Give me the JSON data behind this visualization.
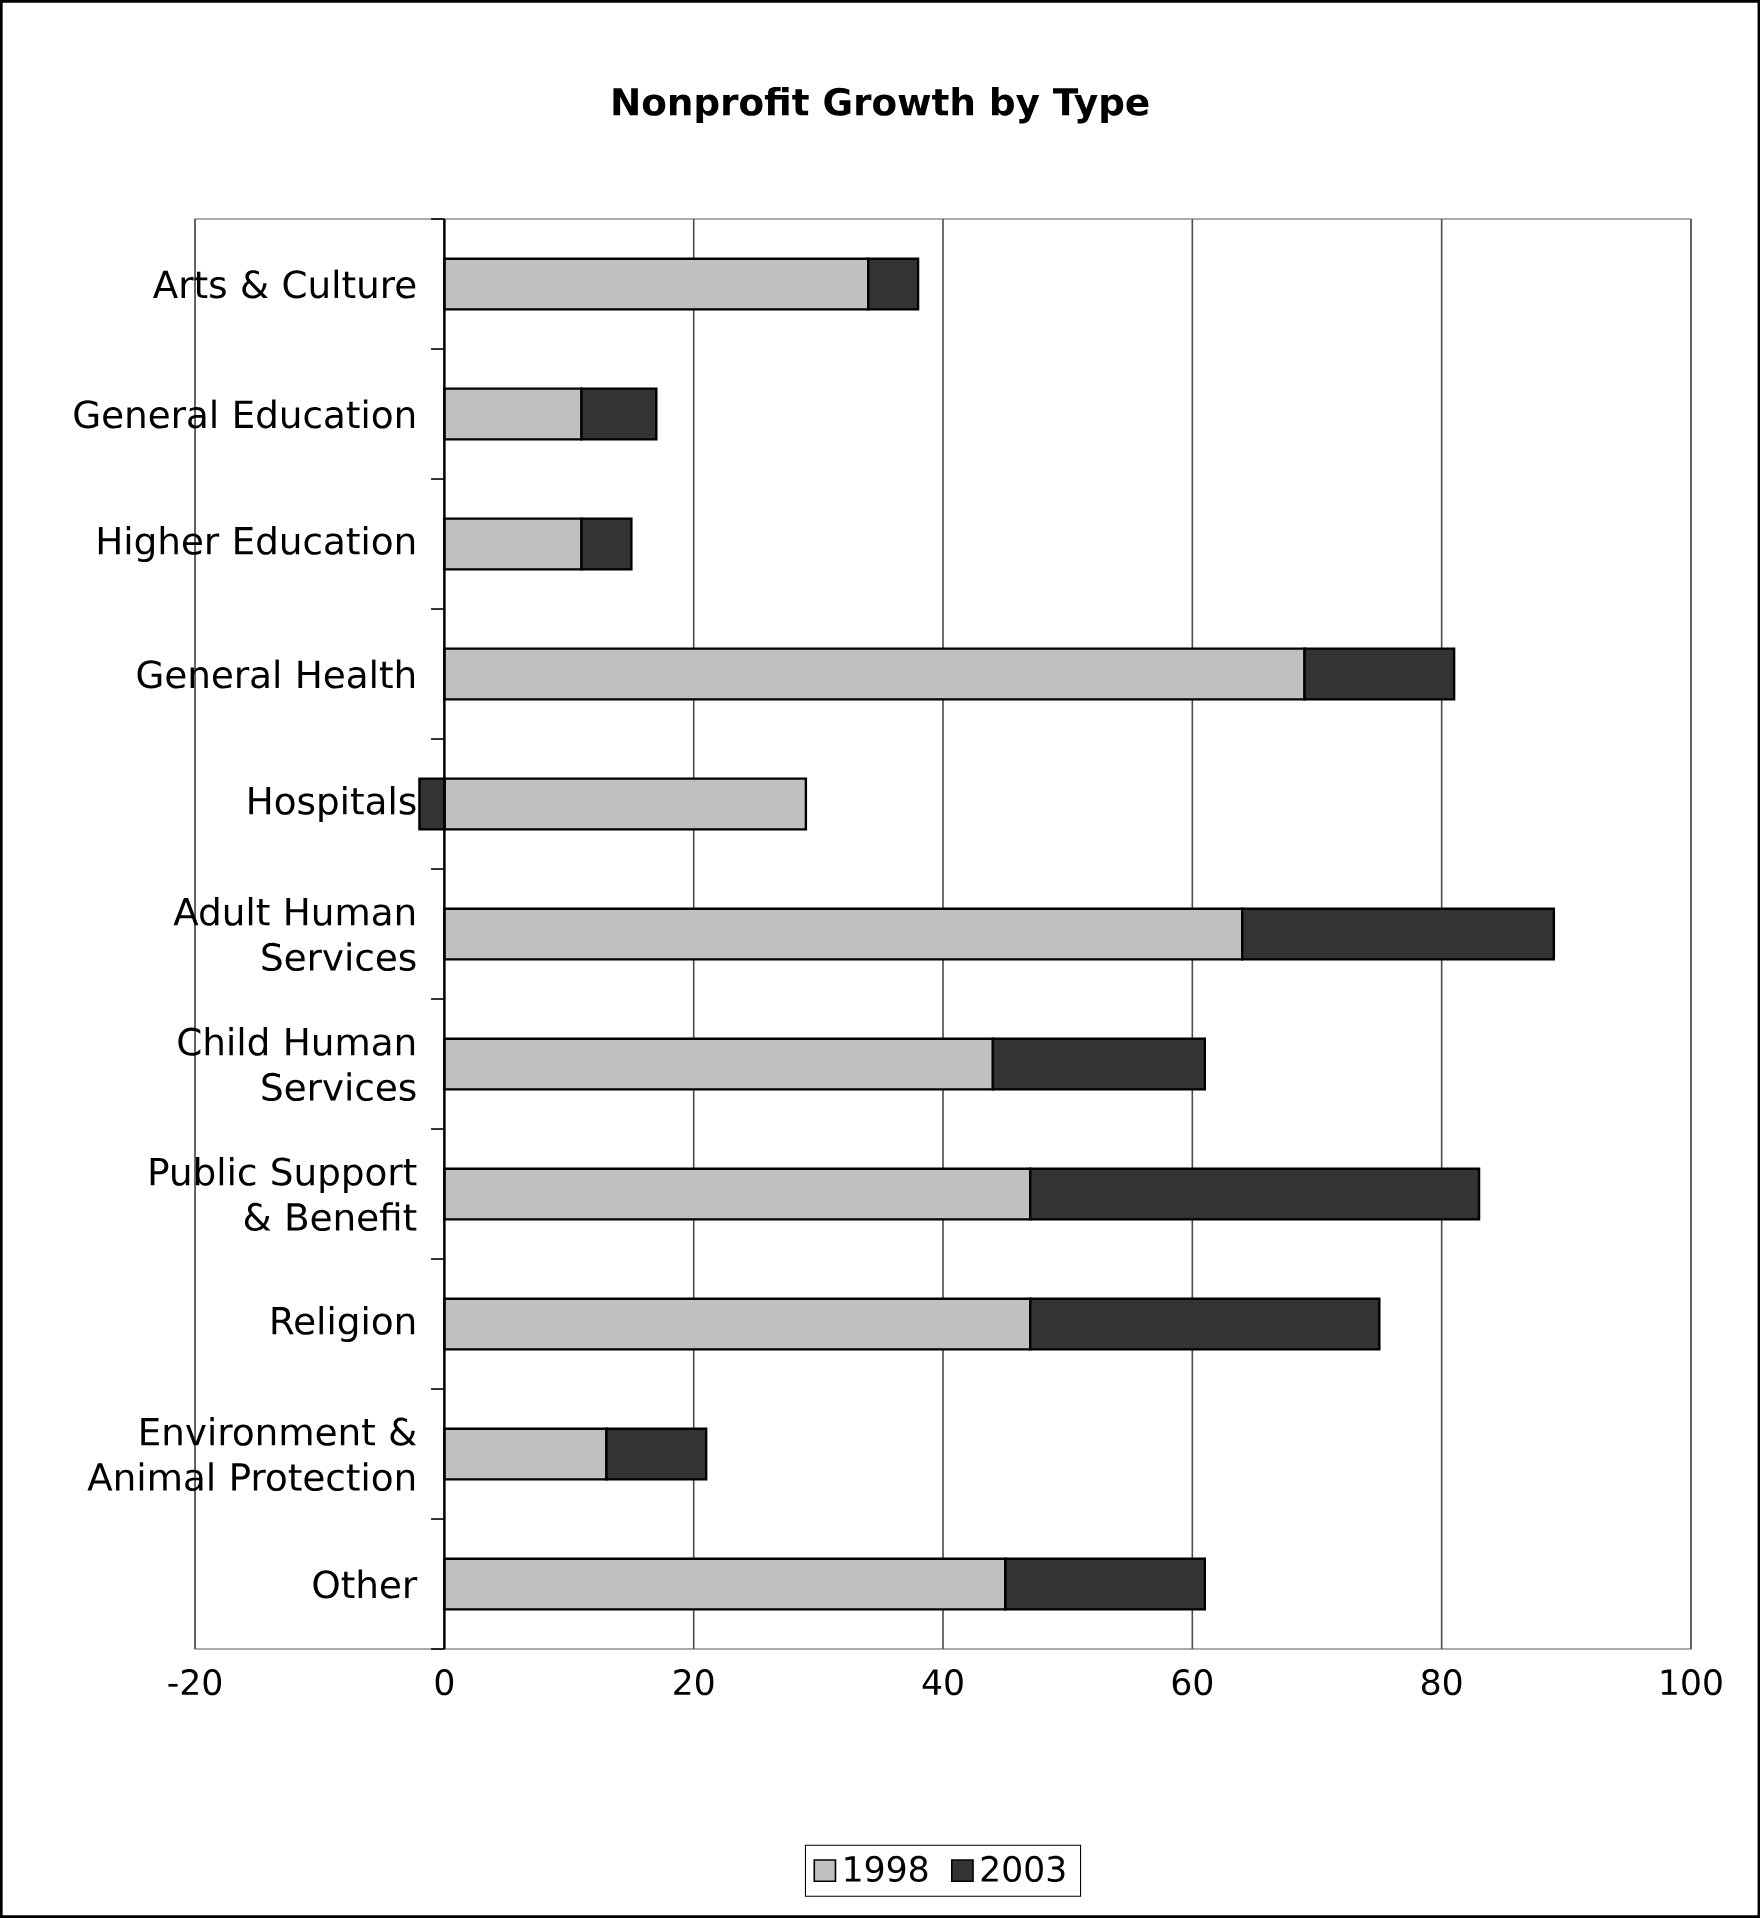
{
  "chart_data": {
    "type": "bar",
    "orientation": "horizontal",
    "stacked": true,
    "title": "Nonprofit Growth by Type",
    "categories": [
      "Arts & Culture",
      "General Education",
      "Higher Education",
      "General Health",
      "Hospitals",
      "Adult Human Services",
      "Child Human Services",
      "Public Support & Benefit",
      "Religion",
      "Environment & Animal Protection",
      "Other"
    ],
    "series": [
      {
        "name": "1998",
        "color": "#c0c0c0",
        "values": [
          34,
          11,
          11,
          69,
          29,
          64,
          44,
          47,
          47,
          13,
          45
        ]
      },
      {
        "name": "2003",
        "color": "#333333",
        "values": [
          4,
          6,
          4,
          12,
          -2,
          25,
          17,
          36,
          28,
          8,
          16
        ]
      }
    ],
    "xlim": [
      -20,
      100
    ],
    "xticks": [
      -20,
      0,
      20,
      40,
      60,
      80,
      100
    ],
    "grid": "x",
    "legend": "bottom"
  }
}
